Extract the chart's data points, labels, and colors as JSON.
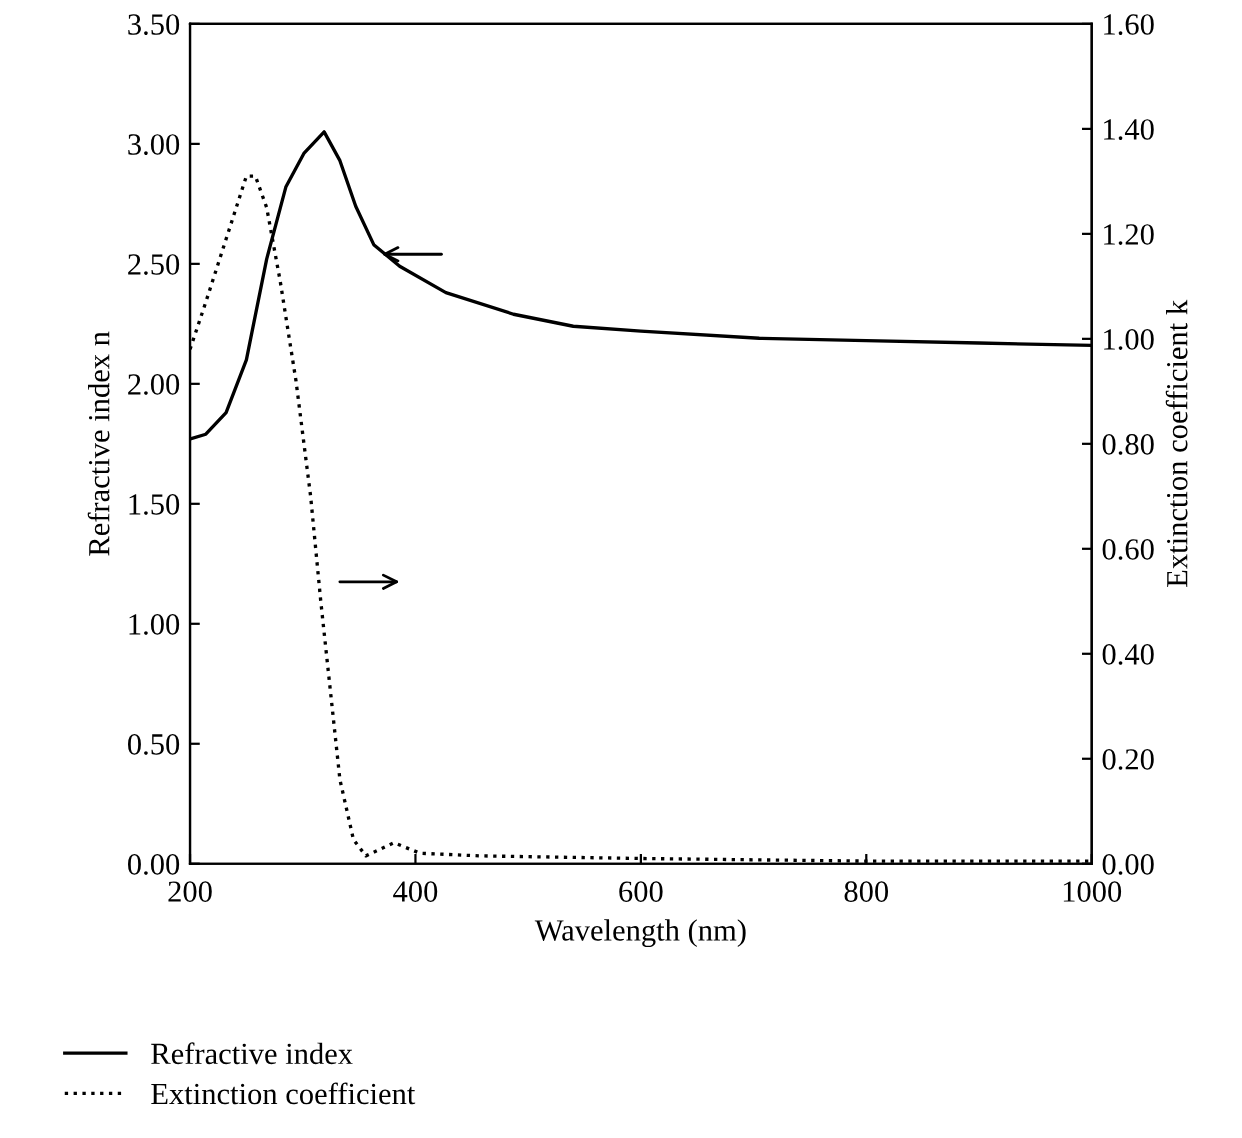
{
  "chart_data": {
    "type": "line",
    "xlabel": "Wavelength (nm)",
    "ylabel": "Refractive index n",
    "y2label": "Extinction coefficient k",
    "xlim": [
      200,
      1000
    ],
    "xticks": [
      200,
      400,
      600,
      800,
      1000
    ],
    "ylim": [
      0,
      3.5
    ],
    "yticks": [
      {
        "value": 0,
        "label": "0.00"
      },
      {
        "value": 0.5,
        "label": "0.50"
      },
      {
        "value": 1,
        "label": "1.00"
      },
      {
        "value": 1.5,
        "label": "1.50"
      },
      {
        "value": 2,
        "label": "2.00"
      },
      {
        "value": 2.5,
        "label": "2.50"
      },
      {
        "value": 3,
        "label": "3.00"
      },
      {
        "value": 3.5,
        "label": "3.50"
      }
    ],
    "y2lim": [
      0,
      1.6
    ],
    "y2ticks": [
      {
        "value": 0,
        "label": "0.00"
      },
      {
        "value": 0.2,
        "label": "0.20"
      },
      {
        "value": 0.4,
        "label": "0.40"
      },
      {
        "value": 0.6,
        "label": "0.60"
      },
      {
        "value": 0.8,
        "label": "0.80"
      },
      {
        "value": 1,
        "label": "1.00"
      },
      {
        "value": 1.2,
        "label": "1.20"
      },
      {
        "value": 1.4,
        "label": "1.40"
      },
      {
        "value": 1.6,
        "label": "1.60"
      }
    ],
    "series": [
      {
        "name": "Refractive index",
        "color": "#000000",
        "line_style": "solid",
        "x": [
          200,
          214,
          232,
          250,
          268,
          285,
          301,
          319,
          333,
          347,
          363,
          386,
          427,
          487,
          540,
          600,
          705,
          800,
          900,
          1000
        ],
        "values": [
          1.77,
          1.79,
          1.88,
          2.1,
          2.52,
          2.82,
          2.96,
          3.05,
          2.93,
          2.74,
          2.58,
          2.49,
          2.38,
          2.29,
          2.24,
          2.22,
          2.19,
          2.18,
          2.17,
          2.16
        ]
      },
      {
        "name": "Extinction coefficient",
        "color": "#000000",
        "line_style": "dotted",
        "axis": "y2",
        "x": [
          200,
          214,
          232,
          250,
          258,
          268,
          280,
          294,
          307,
          316,
          325,
          333,
          345,
          356,
          381,
          404,
          457,
          600,
          800,
          1000
        ],
        "values": [
          0.98,
          1.07,
          1.19,
          1.31,
          1.31,
          1.25,
          1.11,
          0.92,
          0.7,
          0.5,
          0.32,
          0.16,
          0.046,
          0.015,
          0.04,
          0.02,
          0.015,
          0.01,
          0.005,
          0.005
        ]
      }
    ],
    "legend": "bottom",
    "grid": false
  }
}
